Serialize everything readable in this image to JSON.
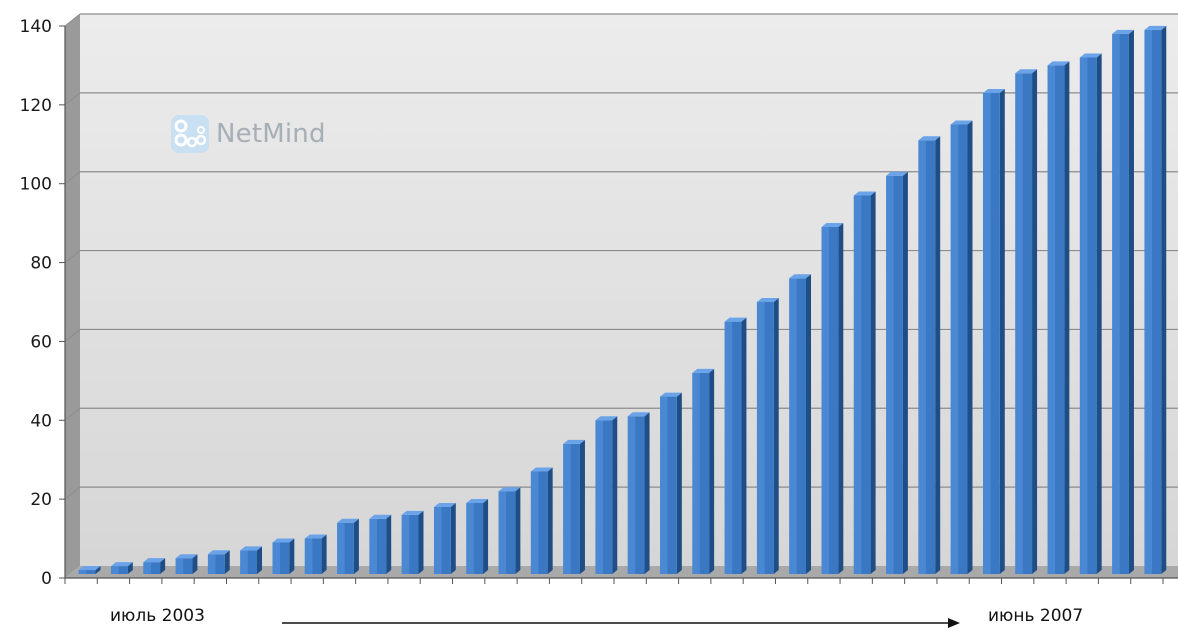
{
  "chart_data": {
    "type": "bar",
    "title": "",
    "xlabel": "",
    "ylabel": "",
    "ylim": [
      0,
      140
    ],
    "yticks": [
      0,
      20,
      40,
      60,
      80,
      100,
      120,
      140
    ],
    "grid": true,
    "legend": "none",
    "bar_color": "#3a78c4",
    "values": [
      1,
      2,
      3,
      4,
      5,
      6,
      8,
      9,
      13,
      14,
      15,
      17,
      18,
      21,
      26,
      33,
      39,
      40,
      45,
      51,
      64,
      69,
      75,
      88,
      96,
      101,
      110,
      114,
      122,
      127,
      129,
      131,
      137,
      138
    ]
  },
  "axis": {
    "start_label": "июль 2003",
    "end_label": "июнь 2007"
  },
  "watermark": {
    "text": "NetMind",
    "icon": "netmind-logo-icon"
  }
}
